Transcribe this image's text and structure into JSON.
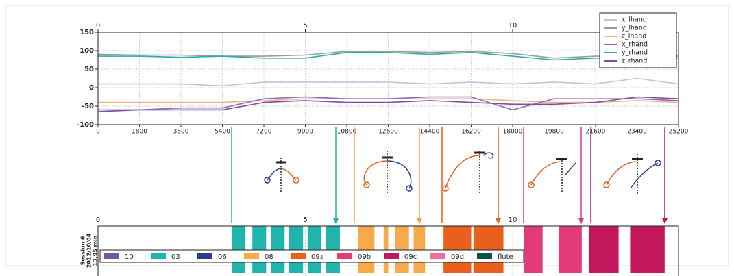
{
  "chart_data": [
    {
      "type": "line",
      "xlim": [
        0,
        25200
      ],
      "ylim": [
        -100,
        150
      ],
      "xticks": [
        0,
        1800,
        3600,
        5400,
        7200,
        9000,
        10800,
        12600,
        14400,
        16200,
        18000,
        19800,
        21600,
        23400,
        25200
      ],
      "yticks": [
        -100,
        -50,
        0,
        50,
        100,
        150
      ],
      "x2lim": [
        0,
        14
      ],
      "x2ticks": [
        0,
        5,
        10
      ],
      "grid": true,
      "legend": "upper right",
      "x": [
        0,
        1800,
        3600,
        5400,
        7200,
        9000,
        10800,
        12600,
        14400,
        16200,
        18000,
        19800,
        21600,
        23400,
        25200
      ],
      "series": [
        {
          "name": "x_lhand",
          "color": "#b8c8e0",
          "values": [
            10,
            10,
            10,
            5,
            15,
            15,
            15,
            15,
            10,
            15,
            10,
            15,
            10,
            25,
            10
          ]
        },
        {
          "name": "y_lhand",
          "color": "#9a9a9a",
          "values": [
            90,
            88,
            88,
            85,
            85,
            88,
            98,
            98,
            95,
            98,
            92,
            80,
            85,
            85,
            85
          ]
        },
        {
          "name": "z_lhand",
          "color": "#f3b37a",
          "values": [
            -40,
            -40,
            -40,
            -40,
            -35,
            -30,
            -30,
            -30,
            -30,
            -30,
            -35,
            -40,
            -40,
            -35,
            -40
          ]
        },
        {
          "name": "x_rhand",
          "color": "#8e6bbf",
          "values": [
            -60,
            -60,
            -55,
            -55,
            -30,
            -25,
            -30,
            -30,
            -25,
            -25,
            -60,
            -30,
            -30,
            -30,
            -35
          ]
        },
        {
          "name": "y_rhand",
          "color": "#2aaea6",
          "values": [
            85,
            85,
            82,
            85,
            80,
            80,
            95,
            95,
            90,
            95,
            85,
            75,
            80,
            80,
            80
          ]
        },
        {
          "name": "z_rhand",
          "color": "#7a4fa0",
          "values": [
            -65,
            -60,
            -60,
            -60,
            -40,
            -35,
            -40,
            -40,
            -35,
            -40,
            -45,
            -45,
            -40,
            -25,
            -30
          ]
        }
      ]
    },
    {
      "type": "timeline",
      "xlim": [
        0,
        25200
      ],
      "x2lim": [
        0,
        14
      ],
      "x2ticks": [
        0,
        5,
        10
      ],
      "ylabel": [
        "Session 6",
        "2012/10/04",
        "13.95 min"
      ],
      "categories": [
        {
          "name": "10",
          "color": "#7b52ab"
        },
        {
          "name": "03",
          "color": "#1fb5ad"
        },
        {
          "name": "06",
          "color": "#2b3990"
        },
        {
          "name": "08",
          "color": "#f7a94b"
        },
        {
          "name": "09a",
          "color": "#e8601c"
        },
        {
          "name": "09b",
          "color": "#e33a7a"
        },
        {
          "name": "09c",
          "color": "#c2185b"
        },
        {
          "name": "09d",
          "color": "#ea6fa5"
        },
        {
          "name": "flute",
          "color": "#0b4f4f"
        }
      ],
      "segments": [
        {
          "start": 5800,
          "end": 6400,
          "category": 1
        },
        {
          "start": 6700,
          "end": 7300,
          "category": 1
        },
        {
          "start": 7500,
          "end": 8100,
          "category": 1
        },
        {
          "start": 8300,
          "end": 8900,
          "category": 1
        },
        {
          "start": 9100,
          "end": 9700,
          "category": 1
        },
        {
          "start": 9900,
          "end": 10500,
          "category": 1
        },
        {
          "start": 11300,
          "end": 12000,
          "category": 3
        },
        {
          "start": 12400,
          "end": 12600,
          "category": 3
        },
        {
          "start": 12900,
          "end": 13500,
          "category": 3
        },
        {
          "start": 13700,
          "end": 14200,
          "category": 3
        },
        {
          "start": 15000,
          "end": 16200,
          "category": 4
        },
        {
          "start": 16300,
          "end": 17600,
          "category": 4
        },
        {
          "start": 18500,
          "end": 19300,
          "category": 5
        },
        {
          "start": 20000,
          "end": 21000,
          "category": 5
        },
        {
          "start": 21300,
          "end": 22600,
          "category": 6
        },
        {
          "start": 23100,
          "end": 24600,
          "category": 6
        }
      ]
    }
  ]
}
